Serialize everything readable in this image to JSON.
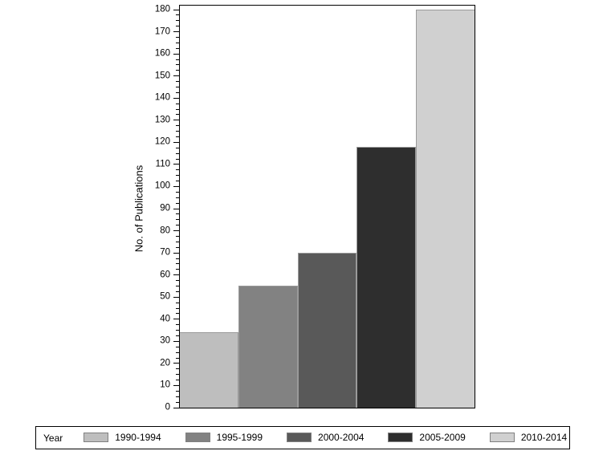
{
  "chart_data": {
    "type": "bar",
    "title": "",
    "xlabel": "",
    "ylabel": "No. of Publications",
    "categories": [
      "1990-1994",
      "1995-1999",
      "2000-2004",
      "2005-2009",
      "2010-2014"
    ],
    "values": [
      34,
      55,
      70,
      118,
      180
    ],
    "bar_colors": [
      "#bebebe",
      "#828282",
      "#595959",
      "#2e2e2e",
      "#d0d0d0"
    ],
    "bar_border_color": "#9a9a9a",
    "ylim": [
      0,
      182
    ],
    "ytick_max": 180,
    "ytick_major_interval": 10,
    "ytick_minor_interval": 2.5,
    "grid": false,
    "frame_color": "#000000",
    "background": "#ffffff",
    "legend": {
      "position": "bottom",
      "title": "Year",
      "entries": [
        "1990-1994",
        "1995-1999",
        "2000-2004",
        "2005-2009",
        "2010-2014"
      ]
    }
  }
}
